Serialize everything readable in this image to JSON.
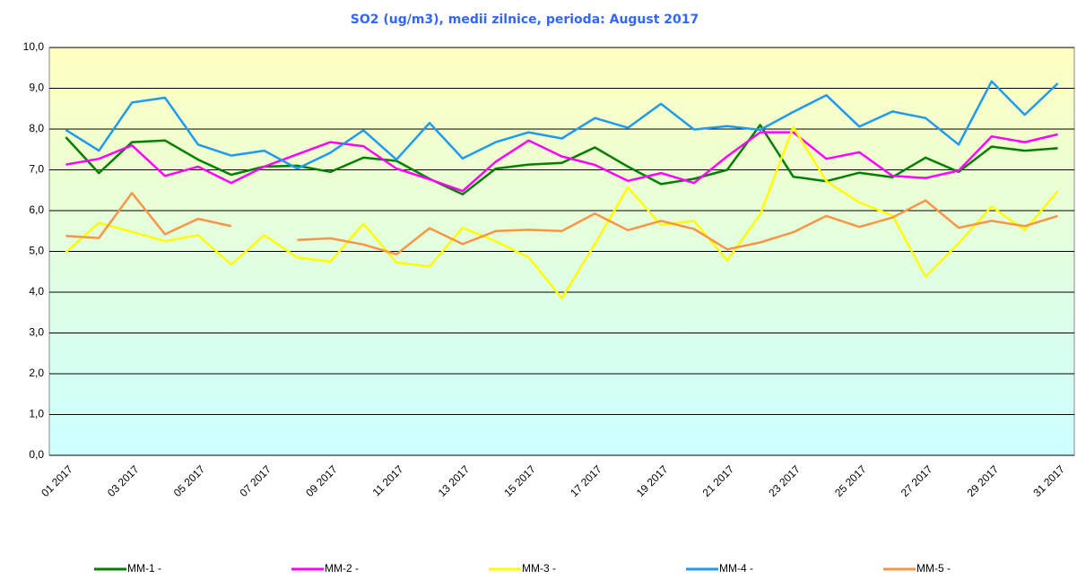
{
  "chart_data": {
    "type": "line",
    "title": "SO2 (ug/m3), medii zilnice, perioda: August 2017",
    "categories": [
      "01 2017",
      null,
      "03 2017",
      null,
      "05 2017",
      null,
      "07 2017",
      null,
      "09 2017",
      null,
      "11 2017",
      null,
      "13 2017",
      null,
      "15 2017",
      null,
      "17 2017",
      null,
      "19 2017",
      null,
      "21 2017",
      null,
      "23 2017",
      null,
      "25 2017",
      null,
      "27 2017",
      null,
      "29 2017",
      null,
      "31 2017"
    ],
    "series": [
      {
        "name": "MM-1 -",
        "color": "#008000",
        "values": [
          7.8,
          6.92,
          7.68,
          7.72,
          7.25,
          6.88,
          7.08,
          7.1,
          6.95,
          7.3,
          7.22,
          6.78,
          6.4,
          7.03,
          7.13,
          7.17,
          7.55,
          7.08,
          6.65,
          6.78,
          7.0,
          8.1,
          6.83,
          6.72,
          6.93,
          6.82,
          7.3,
          6.95,
          7.57,
          7.47,
          7.53
        ]
      },
      {
        "name": "MM-2 -",
        "color": "#ff00ff",
        "values": [
          7.13,
          7.27,
          7.6,
          6.85,
          7.08,
          6.68,
          7.08,
          7.38,
          7.68,
          7.58,
          7.03,
          6.77,
          6.48,
          7.2,
          7.72,
          7.33,
          7.12,
          6.73,
          6.92,
          6.68,
          7.33,
          7.92,
          7.92,
          7.27,
          7.43,
          6.85,
          6.8,
          6.98,
          7.82,
          7.68,
          7.87
        ]
      },
      {
        "name": "MM-3 -",
        "color": "#ffff00",
        "values": [
          4.98,
          5.7,
          5.48,
          5.25,
          5.4,
          4.68,
          5.4,
          4.85,
          4.75,
          5.68,
          4.73,
          4.63,
          5.58,
          5.25,
          4.85,
          3.85,
          5.18,
          6.57,
          5.65,
          5.75,
          4.78,
          5.9,
          8.05,
          6.72,
          6.2,
          5.88,
          4.38,
          5.2,
          6.1,
          5.52,
          6.48
        ]
      },
      {
        "name": "MM-4 -",
        "color": "#1e9bf0",
        "values": [
          7.98,
          7.47,
          8.65,
          8.77,
          7.62,
          7.35,
          7.47,
          7.03,
          7.42,
          7.97,
          7.25,
          8.15,
          7.28,
          7.68,
          7.92,
          7.77,
          8.27,
          8.03,
          8.62,
          7.99,
          8.07,
          7.98,
          8.42,
          8.83,
          8.06,
          8.43,
          8.27,
          7.62,
          9.17,
          8.35,
          9.12
        ]
      },
      {
        "name": "MM-5 -",
        "color": "#f79646",
        "values": [
          5.38,
          5.33,
          6.43,
          5.42,
          5.8,
          5.62,
          null,
          5.28,
          5.32,
          5.17,
          4.93,
          5.57,
          5.18,
          5.5,
          5.53,
          5.5,
          5.93,
          5.52,
          5.75,
          5.55,
          5.05,
          5.22,
          5.47,
          5.87,
          5.6,
          5.83,
          6.25,
          5.58,
          5.75,
          5.62,
          5.87
        ]
      }
    ],
    "ylim": [
      0,
      10
    ],
    "yticks": [
      {
        "value": 0,
        "label": "0,0"
      },
      {
        "value": 1,
        "label": "1,0"
      },
      {
        "value": 2,
        "label": "2,0"
      },
      {
        "value": 3,
        "label": "3,0"
      },
      {
        "value": 4,
        "label": "4,0"
      },
      {
        "value": 5,
        "label": "5,0"
      },
      {
        "value": 6,
        "label": "6,0"
      },
      {
        "value": 7,
        "label": "7,0"
      },
      {
        "value": 8,
        "label": "8,0"
      },
      {
        "value": 9,
        "label": "9,0"
      },
      {
        "value": 10,
        "label": "10,0"
      }
    ],
    "grid": true,
    "legend": "bottom"
  }
}
